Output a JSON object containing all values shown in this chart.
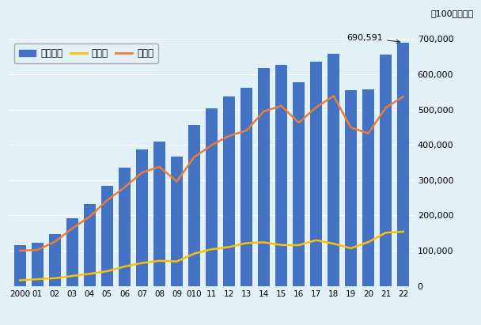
{
  "years": [
    2000,
    2001,
    2002,
    2003,
    2004,
    2005,
    2006,
    2007,
    2008,
    2009,
    2010,
    2011,
    2012,
    2013,
    2014,
    2015,
    2016,
    2017,
    2018,
    2019,
    2020,
    2021,
    2022
  ],
  "x_labels": [
    "2000",
    "01",
    "02",
    "03",
    "04",
    "05",
    "06",
    "07",
    "08",
    "09",
    "010",
    "11",
    "12",
    "13",
    "14",
    "15",
    "16",
    "17",
    "18",
    "19",
    "20",
    "21",
    "22"
  ],
  "trade_total": [
    116315,
    121519,
    147600,
    191498,
    231438,
    285000,
    334617,
    386920,
    409175,
    365895,
    457481,
    503461,
    536156,
    562338,
    618783,
    626558,
    578534,
    636169,
    658800,
    555619,
    557229,
    656369,
    690591
  ],
  "exports": [
    16285,
    19240,
    22053,
    28368,
    34724,
    41836,
    55164,
    65238,
    71457,
    69578,
    91880,
    104121,
    110517,
    121746,
    123657,
    116175,
    115776,
    129893,
    120002,
    106943,
    124518,
    151000,
    154005
  ],
  "imports": [
    100030,
    102279,
    125547,
    163130,
    196714,
    243164,
    279453,
    321682,
    337718,
    296317,
    365601,
    399340,
    425639,
    440592,
    495126,
    510383,
    462758,
    506276,
    538798,
    448676,
    432711,
    505369,
    536586
  ],
  "bar_color": "#4472C4",
  "export_color": "#FFC000",
  "import_color": "#ED7D31",
  "bg_color": "#E2F0F8",
  "annotation_text": "690,591",
  "ylabel_right": "（100万ドル）",
  "legend_labels": [
    "購易総額",
    "輸出額",
    "輸入額"
  ],
  "ylim": [
    0,
    700000
  ],
  "yticks": [
    0,
    100000,
    200000,
    300000,
    400000,
    500000,
    600000,
    700000
  ],
  "ytick_labels": [
    "0",
    "100,000",
    "200,000",
    "300,000",
    "400,000",
    "500,000",
    "600,000",
    "700,000"
  ]
}
